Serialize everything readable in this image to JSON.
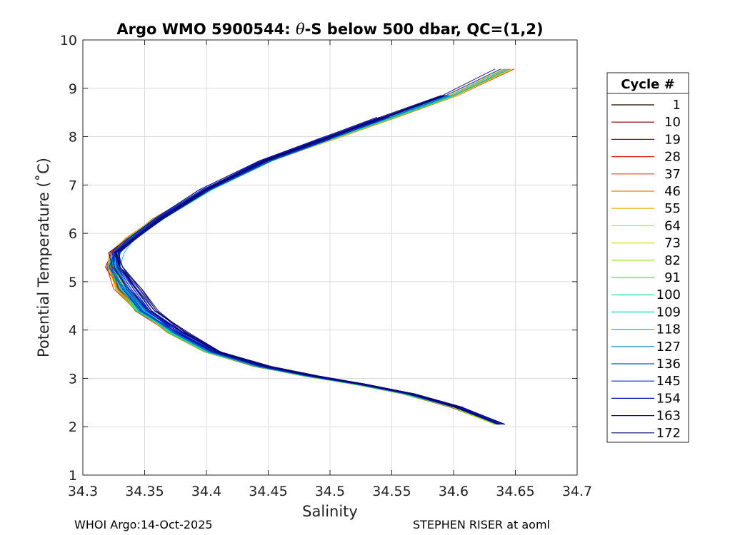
{
  "chart_data": {
    "type": "line",
    "title_prefix": "Argo WMO 5900544: ",
    "title_symbol": "θ",
    "title_suffix": "-S below 500 dbar,  QC=(1,2)",
    "xlabel": "Salinity",
    "ylabel": "Potential Temperature (˚C)",
    "xlim": [
      34.3,
      34.7
    ],
    "ylim": [
      1,
      10
    ],
    "x_ticks": [
      34.3,
      34.35,
      34.4,
      34.45,
      34.5,
      34.55,
      34.6,
      34.65,
      34.7
    ],
    "x_tick_labels": [
      "34.3",
      "34.35",
      "34.4",
      "34.45",
      "34.5",
      "34.55",
      "34.6",
      "34.65",
      "34.7"
    ],
    "y_ticks": [
      1,
      2,
      3,
      4,
      5,
      6,
      7,
      8,
      9,
      10
    ],
    "y_tick_labels": [
      "1",
      "2",
      "3",
      "4",
      "5",
      "6",
      "7",
      "8",
      "9",
      "10"
    ],
    "grid": true,
    "legend_title": "Cycle #",
    "legend_position": "right-outside",
    "legend": [
      {
        "label": "1",
        "color": "#1a0000"
      },
      {
        "label": "10",
        "color": "#7a0000"
      },
      {
        "label": "19",
        "color": "#b30000"
      },
      {
        "label": "28",
        "color": "#dd1a00"
      },
      {
        "label": "37",
        "color": "#e84a00"
      },
      {
        "label": "46",
        "color": "#e87a00"
      },
      {
        "label": "55",
        "color": "#e8aa00"
      },
      {
        "label": "64",
        "color": "#e8d800"
      },
      {
        "label": "73",
        "color": "#c8e800"
      },
      {
        "label": "82",
        "color": "#88e800"
      },
      {
        "label": "91",
        "color": "#40e830"
      },
      {
        "label": "100",
        "color": "#10e090"
      },
      {
        "label": "109",
        "color": "#10d8c8"
      },
      {
        "label": "118",
        "color": "#10b8e0"
      },
      {
        "label": "127",
        "color": "#0a88c8"
      },
      {
        "label": "136",
        "color": "#0a58d0"
      },
      {
        "label": "145",
        "color": "#0a28d8"
      },
      {
        "label": "154",
        "color": "#0a10b0"
      },
      {
        "label": "163",
        "color": "#0a0890"
      },
      {
        "label": "172",
        "color": "#0a0860"
      }
    ],
    "profile_shape": {
      "note": "Representative theta-S profile path (salinity, potential temperature), deep to shallow",
      "points": [
        [
          34.635,
          2.05
        ],
        [
          34.6,
          2.4
        ],
        [
          34.56,
          2.68
        ],
        [
          34.52,
          2.88
        ],
        [
          34.48,
          3.05
        ],
        [
          34.44,
          3.25
        ],
        [
          34.4,
          3.55
        ],
        [
          34.37,
          3.95
        ],
        [
          34.345,
          4.4
        ],
        [
          34.33,
          4.85
        ],
        [
          34.322,
          5.3
        ],
        [
          34.325,
          5.6
        ],
        [
          34.338,
          5.9
        ],
        [
          34.36,
          6.3
        ],
        [
          34.4,
          6.9
        ],
        [
          34.45,
          7.5
        ],
        [
          34.5,
          7.95
        ],
        [
          34.55,
          8.4
        ],
        [
          34.6,
          8.85
        ],
        [
          34.645,
          9.4
        ]
      ],
      "num_profiles": 172
    },
    "footer_left": "WHOI Argo:14-Oct-2025",
    "footer_right": "STEPHEN RISER at aoml"
  }
}
